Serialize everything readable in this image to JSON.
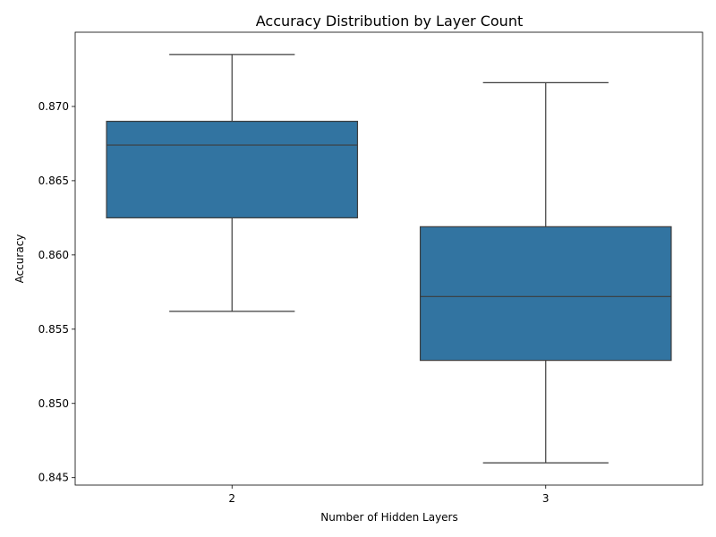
{
  "chart_data": {
    "type": "box",
    "title": "Accuracy Distribution by Layer Count",
    "xlabel": "Number of Hidden Layers",
    "ylabel": "Accuracy",
    "categories": [
      "2",
      "3"
    ],
    "boxes": [
      {
        "category": "2",
        "whisker_low": 0.8562,
        "q1": 0.8625,
        "median": 0.8674,
        "q3": 0.869,
        "whisker_high": 0.8735
      },
      {
        "category": "3",
        "whisker_low": 0.846,
        "q1": 0.8529,
        "median": 0.8572,
        "q3": 0.8619,
        "whisker_high": 0.8716
      }
    ],
    "ylim": [
      0.8445,
      0.875
    ],
    "yticks": [
      0.845,
      0.85,
      0.855,
      0.86,
      0.865,
      0.87
    ],
    "ytick_labels": [
      "0.845",
      "0.850",
      "0.855",
      "0.860",
      "0.865",
      "0.870"
    ],
    "grid": false,
    "colors": {
      "box_fill": "#3274a1",
      "lines": "#3d3d3d",
      "axis": "#000000"
    }
  }
}
